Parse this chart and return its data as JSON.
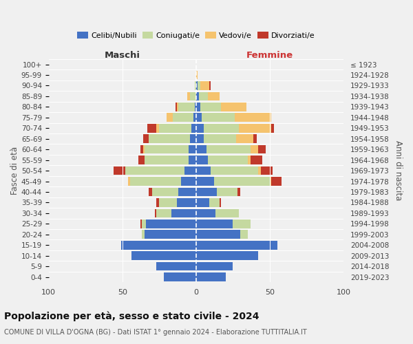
{
  "age_groups": [
    "0-4",
    "5-9",
    "10-14",
    "15-19",
    "20-24",
    "25-29",
    "30-34",
    "35-39",
    "40-44",
    "45-49",
    "50-54",
    "55-59",
    "60-64",
    "65-69",
    "70-74",
    "75-79",
    "80-84",
    "85-89",
    "90-94",
    "95-99",
    "100+"
  ],
  "birth_years": [
    "2019-2023",
    "2014-2018",
    "2009-2013",
    "2004-2008",
    "1999-2003",
    "1994-1998",
    "1989-1993",
    "1984-1988",
    "1979-1983",
    "1974-1978",
    "1969-1973",
    "1964-1968",
    "1959-1963",
    "1954-1958",
    "1949-1953",
    "1944-1948",
    "1939-1943",
    "1934-1938",
    "1929-1933",
    "1924-1928",
    "≤ 1923"
  ],
  "maschi_celibi": [
    22,
    27,
    44,
    51,
    35,
    34,
    17,
    13,
    12,
    10,
    8,
    5,
    5,
    4,
    3,
    2,
    1,
    0,
    0,
    0,
    0
  ],
  "maschi_coniugati": [
    0,
    0,
    0,
    0,
    2,
    3,
    10,
    12,
    18,
    35,
    40,
    30,
    30,
    28,
    22,
    14,
    11,
    4,
    1,
    0,
    0
  ],
  "maschi_vedovi": [
    0,
    0,
    0,
    0,
    0,
    0,
    0,
    0,
    0,
    1,
    0,
    0,
    1,
    0,
    2,
    4,
    1,
    2,
    0,
    0,
    0
  ],
  "maschi_divorziati": [
    0,
    0,
    0,
    0,
    0,
    1,
    1,
    2,
    2,
    0,
    8,
    4,
    2,
    4,
    6,
    0,
    1,
    0,
    0,
    0,
    0
  ],
  "femmine_nubili": [
    20,
    25,
    42,
    55,
    30,
    25,
    13,
    9,
    14,
    12,
    10,
    8,
    7,
    5,
    5,
    4,
    3,
    2,
    1,
    0,
    0
  ],
  "femmine_coniugate": [
    0,
    0,
    0,
    0,
    5,
    12,
    16,
    7,
    14,
    38,
    32,
    27,
    30,
    22,
    24,
    22,
    14,
    6,
    2,
    0,
    0
  ],
  "femmine_vedove": [
    0,
    0,
    0,
    0,
    0,
    0,
    0,
    0,
    0,
    1,
    2,
    2,
    5,
    12,
    22,
    25,
    17,
    8,
    6,
    1,
    0
  ],
  "femmine_divorziate": [
    0,
    0,
    0,
    0,
    0,
    0,
    0,
    1,
    2,
    7,
    8,
    8,
    5,
    2,
    2,
    0,
    0,
    0,
    1,
    0,
    0
  ],
  "color_celibi": "#4472C4",
  "color_coniugati": "#c5d9a0",
  "color_vedovi": "#f5c36e",
  "color_divorziati": "#c0392b",
  "xlim": 100,
  "title": "Popolazione per età, sesso e stato civile - 2024",
  "subtitle": "COMUNE DI VILLA D'OGNA (BG) - Dati ISTAT 1° gennaio 2024 - Elaborazione TUTTITALIA.IT",
  "header_maschi": "Maschi",
  "header_femmine": "Femmine",
  "ylabel_left": "Fasce di età",
  "ylabel_right": "Anni di nascita",
  "bg_color": "#f0f0f0"
}
